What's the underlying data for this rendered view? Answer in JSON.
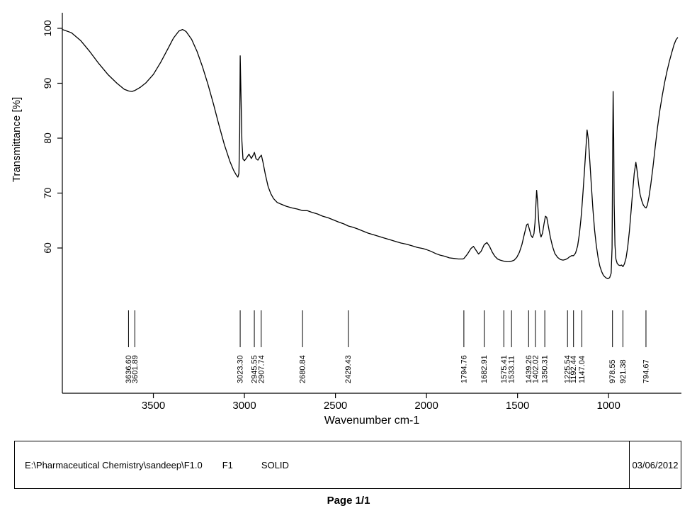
{
  "footer": {
    "file_path": "E:\\Pharmaceutical Chemistry\\sandeep\\F1.0",
    "sample_id": "F1",
    "sample_form": "SOLID",
    "date": "03/06/2012",
    "page_label": "Page 1/1"
  },
  "chart_data": {
    "type": "line",
    "title": "",
    "xlabel": "Wavenumber cm-1",
    "ylabel": "Transmittance [%]",
    "x_ticks": [
      3500,
      3000,
      2500,
      2000,
      1500,
      1000
    ],
    "y_ticks": [
      100,
      90,
      80,
      70,
      60
    ],
    "xlim": [
      4000,
      600
    ],
    "ylim": [
      52,
      102
    ],
    "x_axis_reversed": true,
    "grid": false,
    "line_color": "#000000",
    "peak_labels": [
      "3636.60",
      "3601.89",
      "3023.30",
      "2945.55",
      "2907.74",
      "2680.84",
      "2429.43",
      "1794.76",
      "1682.91",
      "1575.41",
      "1533.11",
      "1439.26",
      "1402.02",
      "1350.31",
      "1225.54",
      "1192.44",
      "1147.04",
      "978.55",
      "921.38",
      "794.67"
    ],
    "series": [
      {
        "name": "IR spectrum",
        "points": [
          [
            4000,
            99.8
          ],
          [
            3950,
            99.2
          ],
          [
            3900,
            97.8
          ],
          [
            3850,
            95.8
          ],
          [
            3800,
            93.6
          ],
          [
            3750,
            91.6
          ],
          [
            3700,
            90.0
          ],
          [
            3660,
            88.9
          ],
          [
            3636,
            88.6
          ],
          [
            3618,
            88.5
          ],
          [
            3601,
            88.7
          ],
          [
            3570,
            89.3
          ],
          [
            3540,
            90.1
          ],
          [
            3500,
            91.6
          ],
          [
            3460,
            93.8
          ],
          [
            3420,
            96.3
          ],
          [
            3390,
            98.2
          ],
          [
            3360,
            99.5
          ],
          [
            3340,
            99.8
          ],
          [
            3320,
            99.4
          ],
          [
            3290,
            98.0
          ],
          [
            3260,
            95.8
          ],
          [
            3230,
            93.0
          ],
          [
            3200,
            89.8
          ],
          [
            3170,
            86.2
          ],
          [
            3140,
            82.4
          ],
          [
            3110,
            78.8
          ],
          [
            3080,
            75.8
          ],
          [
            3060,
            74.2
          ],
          [
            3045,
            73.3
          ],
          [
            3036,
            72.9
          ],
          [
            3030,
            73.6
          ],
          [
            3026,
            81.0
          ],
          [
            3023,
            95.0
          ],
          [
            3019,
            88.0
          ],
          [
            3014,
            79.5
          ],
          [
            3008,
            76.2
          ],
          [
            3000,
            75.9
          ],
          [
            2988,
            76.4
          ],
          [
            2975,
            77.1
          ],
          [
            2962,
            76.3
          ],
          [
            2952,
            76.9
          ],
          [
            2945,
            77.4
          ],
          [
            2937,
            76.3
          ],
          [
            2926,
            76.0
          ],
          [
            2915,
            76.6
          ],
          [
            2907,
            76.9
          ],
          [
            2898,
            75.6
          ],
          [
            2885,
            73.4
          ],
          [
            2870,
            71.2
          ],
          [
            2855,
            69.9
          ],
          [
            2840,
            69.0
          ],
          [
            2820,
            68.3
          ],
          [
            2800,
            68.0
          ],
          [
            2770,
            67.6
          ],
          [
            2740,
            67.3
          ],
          [
            2710,
            67.1
          ],
          [
            2680,
            66.8
          ],
          [
            2655,
            66.8
          ],
          [
            2630,
            66.5
          ],
          [
            2600,
            66.2
          ],
          [
            2570,
            65.8
          ],
          [
            2540,
            65.5
          ],
          [
            2510,
            65.1
          ],
          [
            2480,
            64.7
          ],
          [
            2455,
            64.4
          ],
          [
            2429,
            64.0
          ],
          [
            2405,
            63.8
          ],
          [
            2380,
            63.5
          ],
          [
            2350,
            63.1
          ],
          [
            2320,
            62.7
          ],
          [
            2290,
            62.4
          ],
          [
            2260,
            62.1
          ],
          [
            2230,
            61.8
          ],
          [
            2200,
            61.5
          ],
          [
            2170,
            61.2
          ],
          [
            2140,
            60.9
          ],
          [
            2110,
            60.7
          ],
          [
            2080,
            60.4
          ],
          [
            2050,
            60.1
          ],
          [
            2020,
            59.9
          ],
          [
            2000,
            59.7
          ],
          [
            1975,
            59.4
          ],
          [
            1950,
            59.0
          ],
          [
            1925,
            58.7
          ],
          [
            1900,
            58.5
          ],
          [
            1875,
            58.2
          ],
          [
            1850,
            58.1
          ],
          [
            1825,
            58.0
          ],
          [
            1800,
            58.0
          ],
          [
            1794,
            58.1
          ],
          [
            1775,
            58.9
          ],
          [
            1756,
            59.9
          ],
          [
            1742,
            60.3
          ],
          [
            1728,
            59.6
          ],
          [
            1714,
            58.9
          ],
          [
            1700,
            59.4
          ],
          [
            1683,
            60.6
          ],
          [
            1668,
            61.0
          ],
          [
            1654,
            60.3
          ],
          [
            1640,
            59.3
          ],
          [
            1625,
            58.5
          ],
          [
            1610,
            58.0
          ],
          [
            1595,
            57.8
          ],
          [
            1575,
            57.6
          ],
          [
            1560,
            57.5
          ],
          [
            1545,
            57.5
          ],
          [
            1533,
            57.6
          ],
          [
            1518,
            57.8
          ],
          [
            1504,
            58.3
          ],
          [
            1490,
            59.2
          ],
          [
            1476,
            60.6
          ],
          [
            1462,
            62.6
          ],
          [
            1450,
            64.2
          ],
          [
            1443,
            64.4
          ],
          [
            1435,
            63.4
          ],
          [
            1426,
            62.3
          ],
          [
            1418,
            61.9
          ],
          [
            1410,
            62.6
          ],
          [
            1404,
            64.6
          ],
          [
            1399,
            68.0
          ],
          [
            1395,
            70.5
          ],
          [
            1390,
            68.5
          ],
          [
            1384,
            65.0
          ],
          [
            1378,
            62.9
          ],
          [
            1371,
            62.0
          ],
          [
            1363,
            62.7
          ],
          [
            1355,
            64.3
          ],
          [
            1347,
            65.8
          ],
          [
            1340,
            65.6
          ],
          [
            1331,
            64.0
          ],
          [
            1320,
            62.0
          ],
          [
            1308,
            60.3
          ],
          [
            1295,
            59.0
          ],
          [
            1280,
            58.3
          ],
          [
            1265,
            57.9
          ],
          [
            1250,
            57.8
          ],
          [
            1237,
            57.9
          ],
          [
            1225,
            58.1
          ],
          [
            1214,
            58.4
          ],
          [
            1203,
            58.6
          ],
          [
            1192,
            58.6
          ],
          [
            1181,
            59.1
          ],
          [
            1170,
            60.4
          ],
          [
            1160,
            62.6
          ],
          [
            1152,
            65.2
          ],
          [
            1147,
            67.2
          ],
          [
            1140,
            70.4
          ],
          [
            1132,
            74.2
          ],
          [
            1125,
            77.8
          ],
          [
            1118,
            81.5
          ],
          [
            1111,
            79.8
          ],
          [
            1103,
            75.8
          ],
          [
            1095,
            71.5
          ],
          [
            1086,
            67.0
          ],
          [
            1077,
            63.3
          ],
          [
            1068,
            60.6
          ],
          [
            1058,
            58.3
          ],
          [
            1048,
            56.7
          ],
          [
            1038,
            55.7
          ],
          [
            1028,
            55.0
          ],
          [
            1016,
            54.6
          ],
          [
            1004,
            54.4
          ],
          [
            994,
            54.6
          ],
          [
            986,
            55.4
          ],
          [
            981,
            60.0
          ],
          [
            978,
            75.0
          ],
          [
            975,
            88.5
          ],
          [
            972,
            80.0
          ],
          [
            969,
            68.0
          ],
          [
            965,
            60.5
          ],
          [
            960,
            58.0
          ],
          [
            953,
            57.2
          ],
          [
            945,
            56.9
          ],
          [
            937,
            56.8
          ],
          [
            929,
            56.9
          ],
          [
            921,
            56.6
          ],
          [
            913,
            57.1
          ],
          [
            904,
            58.2
          ],
          [
            895,
            60.2
          ],
          [
            886,
            63.0
          ],
          [
            877,
            66.5
          ],
          [
            868,
            70.2
          ],
          [
            859,
            73.6
          ],
          [
            850,
            75.6
          ],
          [
            843,
            74.0
          ],
          [
            835,
            71.6
          ],
          [
            827,
            69.8
          ],
          [
            818,
            68.6
          ],
          [
            809,
            67.8
          ],
          [
            800,
            67.4
          ],
          [
            794,
            67.3
          ],
          [
            787,
            67.8
          ],
          [
            778,
            69.3
          ],
          [
            768,
            71.6
          ],
          [
            756,
            74.8
          ],
          [
            744,
            78.4
          ],
          [
            731,
            82.0
          ],
          [
            718,
            85.2
          ],
          [
            705,
            87.8
          ],
          [
            692,
            90.2
          ],
          [
            679,
            92.2
          ],
          [
            666,
            94.0
          ],
          [
            653,
            95.6
          ],
          [
            641,
            97.0
          ],
          [
            630,
            97.9
          ],
          [
            621,
            98.3
          ]
        ]
      }
    ]
  }
}
